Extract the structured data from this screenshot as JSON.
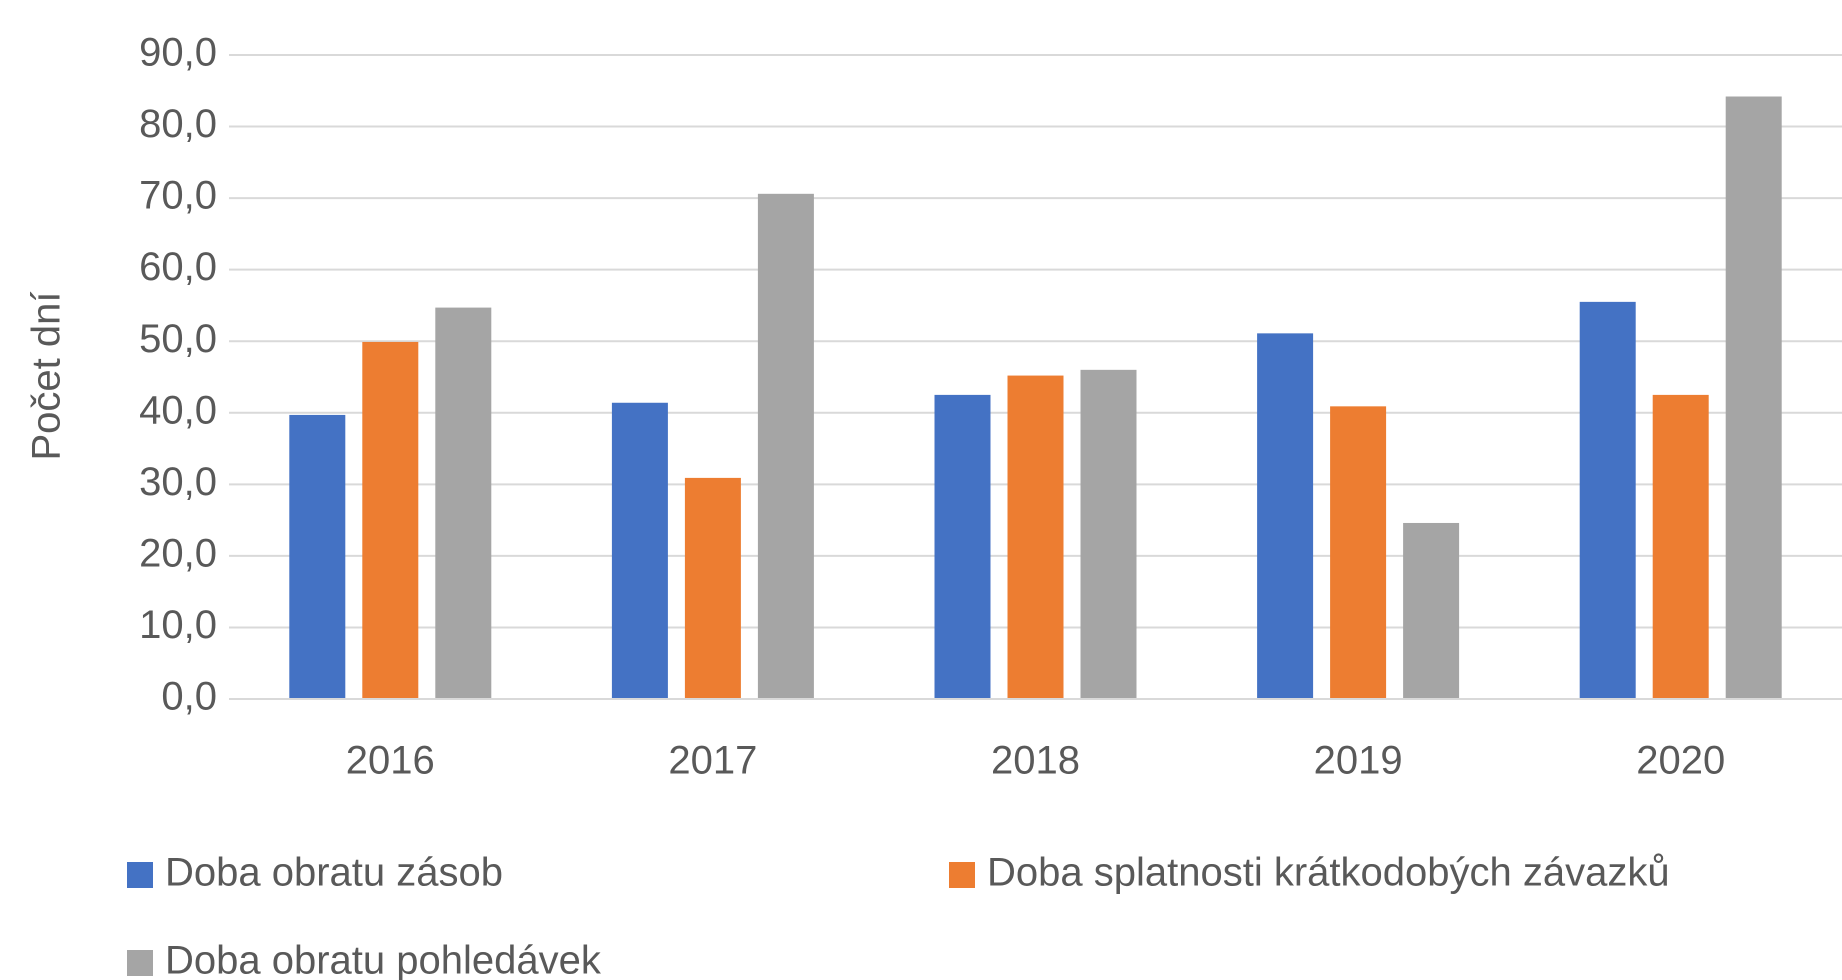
{
  "chart_data": {
    "type": "bar",
    "y_label": "Počet dní",
    "categories": [
      "2016",
      "2017",
      "2018",
      "2019",
      "2020"
    ],
    "series": [
      {
        "name": "Doba obratu zásob",
        "color": "#4472c4",
        "values": [
          39.7,
          41.4,
          42.5,
          51.1,
          55.5
        ]
      },
      {
        "name": "Doba splatnosti krátkodobých závazků",
        "color": "#ed7d31",
        "values": [
          49.9,
          30.9,
          45.2,
          40.9,
          42.5
        ]
      },
      {
        "name": "Doba obratu pohledávek",
        "color": "#a5a5a5",
        "values": [
          54.7,
          70.6,
          46.0,
          24.6,
          84.2
        ]
      }
    ],
    "ylim": [
      0,
      90
    ],
    "yticks": [
      {
        "value": 0,
        "label": "0,0"
      },
      {
        "value": 10,
        "label": "10,0"
      },
      {
        "value": 20,
        "label": "20,0"
      },
      {
        "value": 30,
        "label": "30,0"
      },
      {
        "value": 40,
        "label": "40,0"
      },
      {
        "value": 50,
        "label": "50,0"
      },
      {
        "value": 60,
        "label": "60,0"
      },
      {
        "value": 70,
        "label": "70,0"
      },
      {
        "value": 80,
        "label": "80,0"
      },
      {
        "value": 90,
        "label": "90,0"
      }
    ],
    "grid": true,
    "legend": "bottom"
  }
}
